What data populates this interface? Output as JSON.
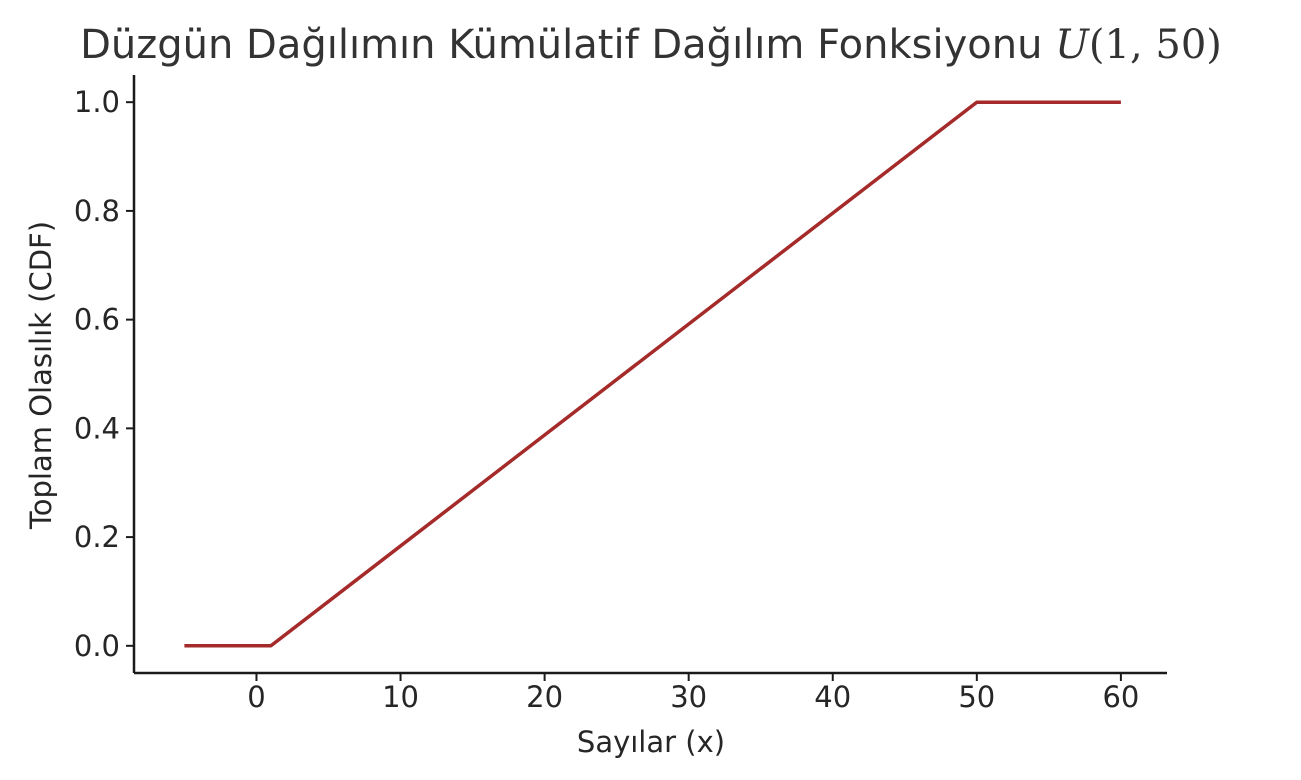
{
  "chart_data": {
    "type": "line",
    "title": "Düzgün Dağılımın Kümülatif Dağılım Fonksiyonu ",
    "title_math": {
      "symbol": "U",
      "args": "(1, 50)"
    },
    "xlabel": "Sayılar (x)",
    "ylabel": "Toplam Olasılık (CDF)",
    "xlim": [
      -8.5,
      63.2
    ],
    "ylim": [
      -0.05,
      1.05
    ],
    "xticks": [
      0,
      10,
      20,
      30,
      40,
      50,
      60
    ],
    "xtick_labels": [
      "0",
      "10",
      "20",
      "30",
      "40",
      "50",
      "60"
    ],
    "yticks": [
      0.0,
      0.2,
      0.4,
      0.6,
      0.8,
      1.0
    ],
    "ytick_labels": [
      "0.0",
      "0.2",
      "0.4",
      "0.6",
      "0.8",
      "1.0"
    ],
    "grid": false,
    "legend": "none",
    "series": [
      {
        "color": "#a52a2a",
        "x": [
          -5,
          1,
          50,
          60
        ],
        "y": [
          0.0,
          0.0,
          1.0,
          1.0
        ]
      }
    ]
  }
}
